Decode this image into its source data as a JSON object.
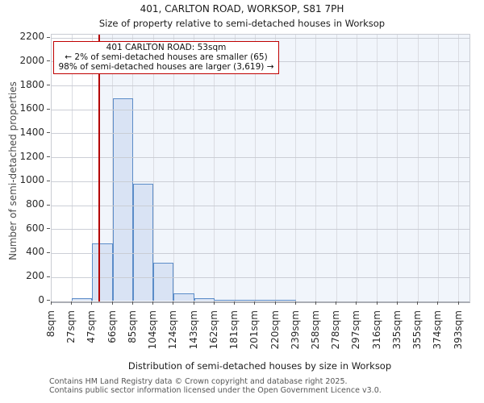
{
  "title": "401, CARLTON ROAD, WORKSOP, S81 7PH",
  "subtitle": "Size of property relative to semi-detached houses in Worksop",
  "annotation": {
    "line1": "401 CARLTON ROAD: 53sqm",
    "line2": "← 2% of semi-detached houses are smaller (65)",
    "line3": "98% of semi-detached houses are larger (3,619) →"
  },
  "footer": {
    "line1": "Contains HM Land Registry data © Crown copyright and database right 2025.",
    "line2": "Contains public sector information licensed under the Open Government Licence v3.0."
  },
  "chart_data": {
    "type": "bar",
    "title": "401, CARLTON ROAD, WORKSOP, S81 7PH",
    "subtitle": "Size of property relative to semi-detached houses in Worksop",
    "xlabel": "Distribution of semi-detached houses by size in Worksop",
    "ylabel": "Number of semi-detached properties",
    "bin_edges_sqm": [
      8,
      27,
      47,
      66,
      85,
      104,
      124,
      143,
      162,
      181,
      201,
      220,
      239,
      258,
      278,
      297,
      316,
      335,
      355,
      374,
      393
    ],
    "xtick_labels": [
      "8sqm",
      "27sqm",
      "47sqm",
      "66sqm",
      "85sqm",
      "104sqm",
      "124sqm",
      "143sqm",
      "162sqm",
      "181sqm",
      "201sqm",
      "220sqm",
      "239sqm",
      "258sqm",
      "278sqm",
      "297sqm",
      "316sqm",
      "335sqm",
      "355sqm",
      "374sqm",
      "393sqm"
    ],
    "values": [
      0,
      25,
      480,
      1690,
      980,
      320,
      65,
      25,
      10,
      6,
      5,
      5,
      0,
      0,
      0,
      0,
      0,
      0,
      0,
      0
    ],
    "yticks": [
      0,
      200,
      400,
      600,
      800,
      1000,
      1200,
      1400,
      1600,
      1800,
      2000,
      2200
    ],
    "ylim": [
      0,
      2230
    ],
    "grid": true,
    "legend": null,
    "marker": {
      "value_sqm": 53,
      "smaller_count": 65,
      "smaller_pct": "2%",
      "larger_count": "3,619",
      "larger_pct": "98%"
    },
    "colors": {
      "bar_fill": "#d9e3f4",
      "bar_edge": "#5b8cc8",
      "marker_line": "#b40000",
      "annotation_border": "#c00000",
      "shaded_region": "#f1f5fb",
      "gridline": "#d5d8de"
    }
  }
}
